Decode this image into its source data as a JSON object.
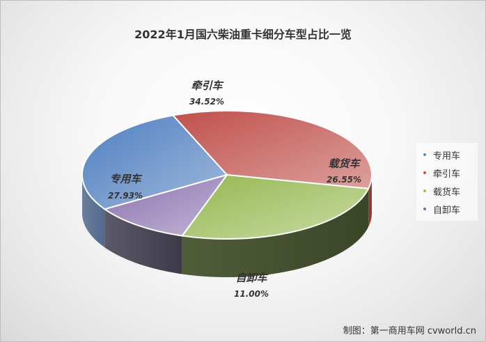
{
  "chart_data": {
    "type": "pie",
    "title": "2022年1月国六柴油重卡细分车型占比一览",
    "slices": [
      {
        "name": "专用车",
        "value": 27.93,
        "label": "27.93%",
        "color": "#5b86c4"
      },
      {
        "name": "牵引车",
        "value": 34.52,
        "label": "34.52%",
        "color": "#c0504d"
      },
      {
        "name": "载货车",
        "value": 26.55,
        "label": "26.55%",
        "color": "#9bbb59"
      },
      {
        "name": "自卸车",
        "value": 11.0,
        "label": "11.00%",
        "color": "#8064a2"
      }
    ],
    "legend": {
      "placement": "right",
      "items": [
        "专用车",
        "牵引车",
        "载货车",
        "自卸车"
      ]
    }
  },
  "credit": "制图：第一商用车网 cvworld.cn"
}
